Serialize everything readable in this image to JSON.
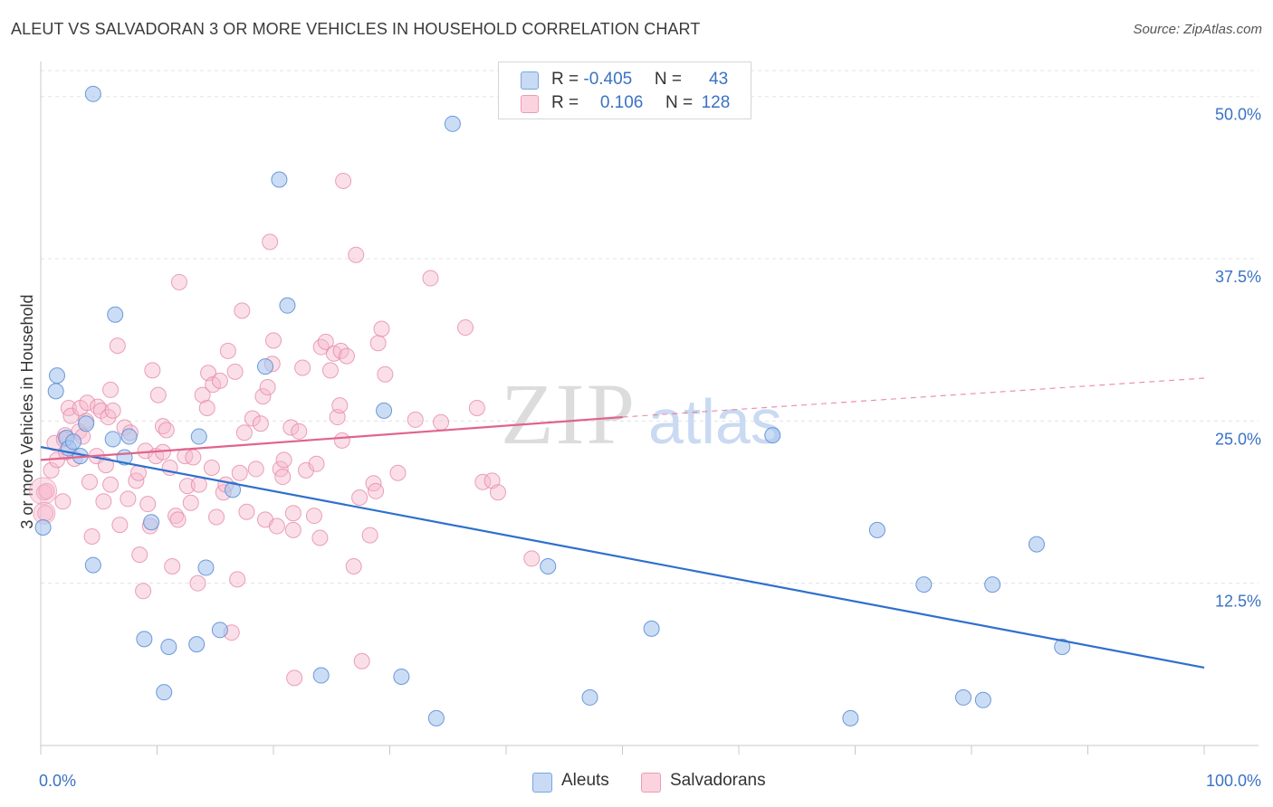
{
  "header": {
    "title": "ALEUT VS SALVADORAN 3 OR MORE VEHICLES IN HOUSEHOLD CORRELATION CHART",
    "source": "Source: ZipAtlas.com"
  },
  "watermark": {
    "zip": "ZIP",
    "atlas": "atlas"
  },
  "legend": {
    "rows": [
      {
        "r_label": "R = ",
        "r_value": "-0.405",
        "n_label": "N = ",
        "n_value": "43",
        "color": "#a9c6ee"
      },
      {
        "r_label": "R = ",
        "r_value": "0.106",
        "n_label": "N = ",
        "n_value": "128",
        "color": "#f6b8cb"
      }
    ]
  },
  "bottom_legend": [
    {
      "label": "Aleuts",
      "color": "#a9c6ee"
    },
    {
      "label": "Salvadorans",
      "color": "#f6b8cb"
    }
  ],
  "colors": {
    "aleut_fill": "#a9c6ee",
    "aleut_stroke": "#5d8fd6",
    "aleut_line": "#2f6fce",
    "salv_fill": "#f6b8cb",
    "salv_stroke": "#e58aa8",
    "salv_line": "#e0648c",
    "axis_text": "#3a72c4",
    "grid": "#e3e3e3"
  },
  "chart_data": {
    "type": "scatter",
    "title": "ALEUT VS SALVADORAN 3 OR MORE VEHICLES IN HOUSEHOLD CORRELATION CHART",
    "xlabel": "",
    "ylabel": "3 or more Vehicles in Household",
    "xlim": [
      0,
      100
    ],
    "ylim": [
      0,
      52
    ],
    "x_tick_labels": [
      "0.0%",
      "100.0%"
    ],
    "y_ticks": [
      12.5,
      25.0,
      37.5,
      50.0
    ],
    "y_tick_labels": [
      "12.5%",
      "25.0%",
      "37.5%",
      "50.0%"
    ],
    "grid": true,
    "legend_position": "top-center",
    "series": [
      {
        "name": "Aleuts",
        "r": -0.405,
        "n": 43,
        "trend": {
          "x": [
            0,
            100
          ],
          "y": [
            23.0,
            6.0
          ],
          "dashed_from": null
        },
        "points": [
          [
            0.2,
            16.8
          ],
          [
            1.3,
            27.3
          ],
          [
            1.4,
            28.5
          ],
          [
            2.2,
            23.7
          ],
          [
            2.4,
            22.9
          ],
          [
            3.4,
            22.3
          ],
          [
            3.9,
            24.8
          ],
          [
            4.5,
            13.9
          ],
          [
            4.5,
            50.2
          ],
          [
            6.2,
            23.6
          ],
          [
            6.4,
            33.2
          ],
          [
            7.2,
            22.2
          ],
          [
            7.6,
            23.8
          ],
          [
            8.9,
            8.2
          ],
          [
            9.5,
            17.2
          ],
          [
            10.6,
            4.1
          ],
          [
            11.0,
            7.6
          ],
          [
            13.4,
            7.8
          ],
          [
            13.6,
            23.8
          ],
          [
            14.2,
            13.7
          ],
          [
            15.4,
            8.9
          ],
          [
            16.5,
            19.7
          ],
          [
            19.3,
            29.2
          ],
          [
            20.5,
            43.6
          ],
          [
            21.2,
            33.9
          ],
          [
            24.1,
            5.4
          ],
          [
            29.5,
            25.8
          ],
          [
            31.0,
            5.3
          ],
          [
            34.0,
            2.1
          ],
          [
            35.4,
            47.9
          ],
          [
            43.6,
            13.8
          ],
          [
            47.2,
            3.7
          ],
          [
            52.5,
            9.0
          ],
          [
            62.9,
            23.9
          ],
          [
            69.6,
            2.1
          ],
          [
            71.9,
            16.6
          ],
          [
            75.9,
            12.4
          ],
          [
            79.3,
            3.7
          ],
          [
            81.0,
            3.5
          ],
          [
            81.8,
            12.4
          ],
          [
            85.6,
            15.5
          ],
          [
            87.8,
            7.6
          ],
          [
            2.8,
            23.4
          ]
        ]
      },
      {
        "name": "Salvadorans",
        "r": 0.106,
        "n": 128,
        "trend": {
          "x": [
            0,
            50,
            100
          ],
          "y": [
            22.0,
            25.3,
            28.3
          ],
          "dashed_from": 50
        },
        "points": [
          [
            0.3,
            19.5
          ],
          [
            0.4,
            17.9
          ],
          [
            0.5,
            19.6
          ],
          [
            0.9,
            21.2
          ],
          [
            1.2,
            23.3
          ],
          [
            1.4,
            22.0
          ],
          [
            1.9,
            18.8
          ],
          [
            2.1,
            23.9
          ],
          [
            2.2,
            22.6
          ],
          [
            2.4,
            26.0
          ],
          [
            2.6,
            25.4
          ],
          [
            2.9,
            22.1
          ],
          [
            3.3,
            24.2
          ],
          [
            3.4,
            26.0
          ],
          [
            3.6,
            23.8
          ],
          [
            3.9,
            25.0
          ],
          [
            4.0,
            26.4
          ],
          [
            4.2,
            20.3
          ],
          [
            4.4,
            16.1
          ],
          [
            4.8,
            22.3
          ],
          [
            4.9,
            26.1
          ],
          [
            5.2,
            25.8
          ],
          [
            5.4,
            18.8
          ],
          [
            5.6,
            21.6
          ],
          [
            5.8,
            25.3
          ],
          [
            6.0,
            20.1
          ],
          [
            6.0,
            27.4
          ],
          [
            6.2,
            25.8
          ],
          [
            6.6,
            30.8
          ],
          [
            6.8,
            17.0
          ],
          [
            7.2,
            24.5
          ],
          [
            7.5,
            19.0
          ],
          [
            7.7,
            24.1
          ],
          [
            8.2,
            20.4
          ],
          [
            8.4,
            21.0
          ],
          [
            8.5,
            14.7
          ],
          [
            8.8,
            11.9
          ],
          [
            9.0,
            22.7
          ],
          [
            9.2,
            18.6
          ],
          [
            9.4,
            16.9
          ],
          [
            9.6,
            28.9
          ],
          [
            9.9,
            22.3
          ],
          [
            10.1,
            27.0
          ],
          [
            10.5,
            24.6
          ],
          [
            10.5,
            22.6
          ],
          [
            10.8,
            24.3
          ],
          [
            11.1,
            21.4
          ],
          [
            11.3,
            13.8
          ],
          [
            11.6,
            17.7
          ],
          [
            11.8,
            17.4
          ],
          [
            11.9,
            35.7
          ],
          [
            12.4,
            22.3
          ],
          [
            12.6,
            20.0
          ],
          [
            12.9,
            18.7
          ],
          [
            13.1,
            22.2
          ],
          [
            13.5,
            12.5
          ],
          [
            13.6,
            20.1
          ],
          [
            13.9,
            27.0
          ],
          [
            14.3,
            26.0
          ],
          [
            14.4,
            28.7
          ],
          [
            14.7,
            21.4
          ],
          [
            14.8,
            27.8
          ],
          [
            15.1,
            17.6
          ],
          [
            15.4,
            28.1
          ],
          [
            15.7,
            19.5
          ],
          [
            15.9,
            20.1
          ],
          [
            16.1,
            30.4
          ],
          [
            16.4,
            8.7
          ],
          [
            16.7,
            28.8
          ],
          [
            16.9,
            12.8
          ],
          [
            17.1,
            21.0
          ],
          [
            17.3,
            33.5
          ],
          [
            17.5,
            24.1
          ],
          [
            17.7,
            18.0
          ],
          [
            18.2,
            25.2
          ],
          [
            18.5,
            21.3
          ],
          [
            18.9,
            24.8
          ],
          [
            19.1,
            26.9
          ],
          [
            19.3,
            17.4
          ],
          [
            19.5,
            27.6
          ],
          [
            19.7,
            38.8
          ],
          [
            19.9,
            29.4
          ],
          [
            20.0,
            31.2
          ],
          [
            20.3,
            16.9
          ],
          [
            20.6,
            21.3
          ],
          [
            20.8,
            20.7
          ],
          [
            20.9,
            22.0
          ],
          [
            21.5,
            24.5
          ],
          [
            21.7,
            16.6
          ],
          [
            21.7,
            17.9
          ],
          [
            21.8,
            5.2
          ],
          [
            22.2,
            24.2
          ],
          [
            22.5,
            29.1
          ],
          [
            22.8,
            21.2
          ],
          [
            23.5,
            17.7
          ],
          [
            23.7,
            21.7
          ],
          [
            24.0,
            16.0
          ],
          [
            24.1,
            30.7
          ],
          [
            24.5,
            31.1
          ],
          [
            24.9,
            28.9
          ],
          [
            25.2,
            30.2
          ],
          [
            25.5,
            25.3
          ],
          [
            25.7,
            26.2
          ],
          [
            25.8,
            30.4
          ],
          [
            25.9,
            23.5
          ],
          [
            26.0,
            43.5
          ],
          [
            26.3,
            30.0
          ],
          [
            26.9,
            13.8
          ],
          [
            27.1,
            37.8
          ],
          [
            27.4,
            19.1
          ],
          [
            27.6,
            6.5
          ],
          [
            28.3,
            16.2
          ],
          [
            28.6,
            20.2
          ],
          [
            28.8,
            19.6
          ],
          [
            29.0,
            31.0
          ],
          [
            29.3,
            32.1
          ],
          [
            29.6,
            28.6
          ],
          [
            30.7,
            21.0
          ],
          [
            32.2,
            25.1
          ],
          [
            33.5,
            36.0
          ],
          [
            34.4,
            24.9
          ],
          [
            36.5,
            32.2
          ],
          [
            37.5,
            26.0
          ],
          [
            38.0,
            20.3
          ],
          [
            38.8,
            20.4
          ],
          [
            39.3,
            19.5
          ],
          [
            42.2,
            14.4
          ],
          [
            2.0,
            23.6
          ]
        ]
      }
    ]
  }
}
